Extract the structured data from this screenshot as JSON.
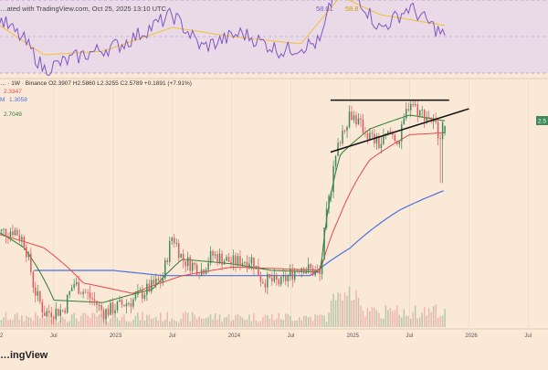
{
  "header": {
    "published_text": "…ated with TradingView.com, Oct 25, 2025 13:10 UTC",
    "rsi_value_1": "58.01",
    "rsi_value_2": "58.8"
  },
  "legend": {
    "symbol_line": "… · 1W · Binance  O2.3907  H2.5860  L2.3255  C2.5789  +0.1891 (+7.91%)",
    "ma1_value": "2.3347",
    "ma2_value": "1.3058",
    "ma2_prefix": "M",
    "ma3_value": "2.7049"
  },
  "price_tag": "2.5",
  "footer": {
    "brand": "…ingView"
  },
  "colors": {
    "background": "#fbe9d8",
    "rsi_band": "#e6d6ec",
    "rsi_line": "#7e57c2",
    "rsi_ma_line": "#f1c232",
    "bull": "#3e8a5c",
    "bear": "#e2575a",
    "ma_red": "#e84848",
    "ma_green": "#2e7d32",
    "ma_blue": "#4c6fe0",
    "trendline": "#111111",
    "grid": "#ead7c5"
  },
  "chart_data": {
    "type": "candlestick",
    "timeframe": "1W",
    "exchange": "Binance",
    "x_tick_labels": [
      "2",
      "Jul",
      "2023",
      "Jul",
      "2024",
      "Jul",
      "2025",
      "Jul",
      "2026",
      "Jul"
    ],
    "x_start": "2022-01",
    "x_end": "2026-09",
    "scale": "log",
    "ylim": [
      0.3,
      4.2
    ],
    "last_bar": {
      "open": 2.3907,
      "high": 2.586,
      "low": 2.3255,
      "close": 2.5789,
      "change": 0.1891,
      "change_pct": 7.91
    },
    "moving_averages": [
      {
        "value_shown": 2.3347,
        "color": "red"
      },
      {
        "value_shown": 1.3058,
        "color": "blue"
      },
      {
        "value_shown": 2.7049,
        "color": "green"
      }
    ],
    "price_anchors": [
      [
        "2022-01",
        0.82
      ],
      [
        "2022-03",
        0.85
      ],
      [
        "2022-04",
        0.75
      ],
      [
        "2022-05",
        0.45
      ],
      [
        "2022-06",
        0.35
      ],
      [
        "2022-08",
        0.36
      ],
      [
        "2022-09",
        0.48
      ],
      [
        "2022-11",
        0.4
      ],
      [
        "2022-12",
        0.35
      ],
      [
        "2023-03",
        0.4
      ],
      [
        "2023-06",
        0.5
      ],
      [
        "2023-07",
        0.8
      ],
      [
        "2023-08",
        0.62
      ],
      [
        "2023-10",
        0.55
      ],
      [
        "2023-11",
        0.65
      ],
      [
        "2024-01",
        0.6
      ],
      [
        "2024-03",
        0.62
      ],
      [
        "2024-04",
        0.5
      ],
      [
        "2024-06",
        0.48
      ],
      [
        "2024-08",
        0.58
      ],
      [
        "2024-10",
        0.52
      ],
      [
        "2024-11",
        1.3
      ],
      [
        "2024-12",
        2.3
      ],
      [
        "2025-01",
        3.0
      ],
      [
        "2025-02",
        2.6
      ],
      [
        "2025-03",
        2.3
      ],
      [
        "2025-04",
        2.1
      ],
      [
        "2025-05",
        2.4
      ],
      [
        "2025-06",
        2.2
      ],
      [
        "2025-07",
        3.4
      ],
      [
        "2025-08",
        3.0
      ],
      [
        "2025-09",
        2.85
      ],
      [
        "2025-10",
        2.4
      ],
      [
        "2025-10-20",
        2.58
      ]
    ],
    "ma_red_anchors": [
      [
        "2022-01",
        0.82
      ],
      [
        "2022-06",
        0.7
      ],
      [
        "2022-10",
        0.48
      ],
      [
        "2023-03",
        0.43
      ],
      [
        "2023-08",
        0.52
      ],
      [
        "2024-01",
        0.57
      ],
      [
        "2024-06",
        0.56
      ],
      [
        "2024-10",
        0.55
      ],
      [
        "2024-12",
        1.0
      ],
      [
        "2025-03",
        1.8
      ],
      [
        "2025-07",
        2.35
      ],
      [
        "2025-10-20",
        2.4
      ]
    ],
    "ma_green_anchors": [
      [
        "2022-01",
        0.85
      ],
      [
        "2022-04",
        0.7
      ],
      [
        "2022-07",
        0.4
      ],
      [
        "2022-12",
        0.39
      ],
      [
        "2023-05",
        0.45
      ],
      [
        "2023-08",
        0.62
      ],
      [
        "2024-01",
        0.59
      ],
      [
        "2024-05",
        0.55
      ],
      [
        "2024-10",
        0.54
      ],
      [
        "2024-12",
        1.9
      ],
      [
        "2025-03",
        2.5
      ],
      [
        "2025-07",
        2.9
      ],
      [
        "2025-10-20",
        2.72
      ]
    ],
    "ma_blue_anchors": [
      [
        "2022-05",
        0.55
      ],
      [
        "2023-01",
        0.55
      ],
      [
        "2023-06",
        0.52
      ],
      [
        "2024-01",
        0.52
      ],
      [
        "2024-09",
        0.52
      ],
      [
        "2025-01",
        0.7
      ],
      [
        "2025-06",
        1.05
      ],
      [
        "2025-10-20",
        1.3
      ]
    ],
    "resistance_line": [
      [
        "2024-11",
        3.4
      ],
      [
        "2025-11",
        3.4
      ]
    ],
    "support_line": [
      [
        "2024-11",
        1.95
      ],
      [
        "2026-01",
        3.1
      ]
    ],
    "rsi": {
      "band": [
        30,
        70
      ],
      "anchors": [
        [
          "2022-01",
          62
        ],
        [
          "2022-04",
          48
        ],
        [
          "2022-06",
          32
        ],
        [
          "2022-10",
          40
        ],
        [
          "2023-02",
          46
        ],
        [
          "2023-07",
          62
        ],
        [
          "2023-10",
          44
        ],
        [
          "2024-02",
          52
        ],
        [
          "2024-06",
          42
        ],
        [
          "2024-10",
          47
        ],
        [
          "2024-12",
          88
        ],
        [
          "2025-02",
          70
        ],
        [
          "2025-04",
          54
        ],
        [
          "2025-07",
          66
        ],
        [
          "2025-10-20",
          50
        ]
      ],
      "ma_anchors": [
        [
          "2022-01",
          58
        ],
        [
          "2022-06",
          40
        ],
        [
          "2022-12",
          42
        ],
        [
          "2023-07",
          55
        ],
        [
          "2024-01",
          50
        ],
        [
          "2024-08",
          46
        ],
        [
          "2024-12",
          72
        ],
        [
          "2025-04",
          62
        ],
        [
          "2025-10-20",
          56
        ]
      ]
    },
    "volume_scale": "relative"
  }
}
